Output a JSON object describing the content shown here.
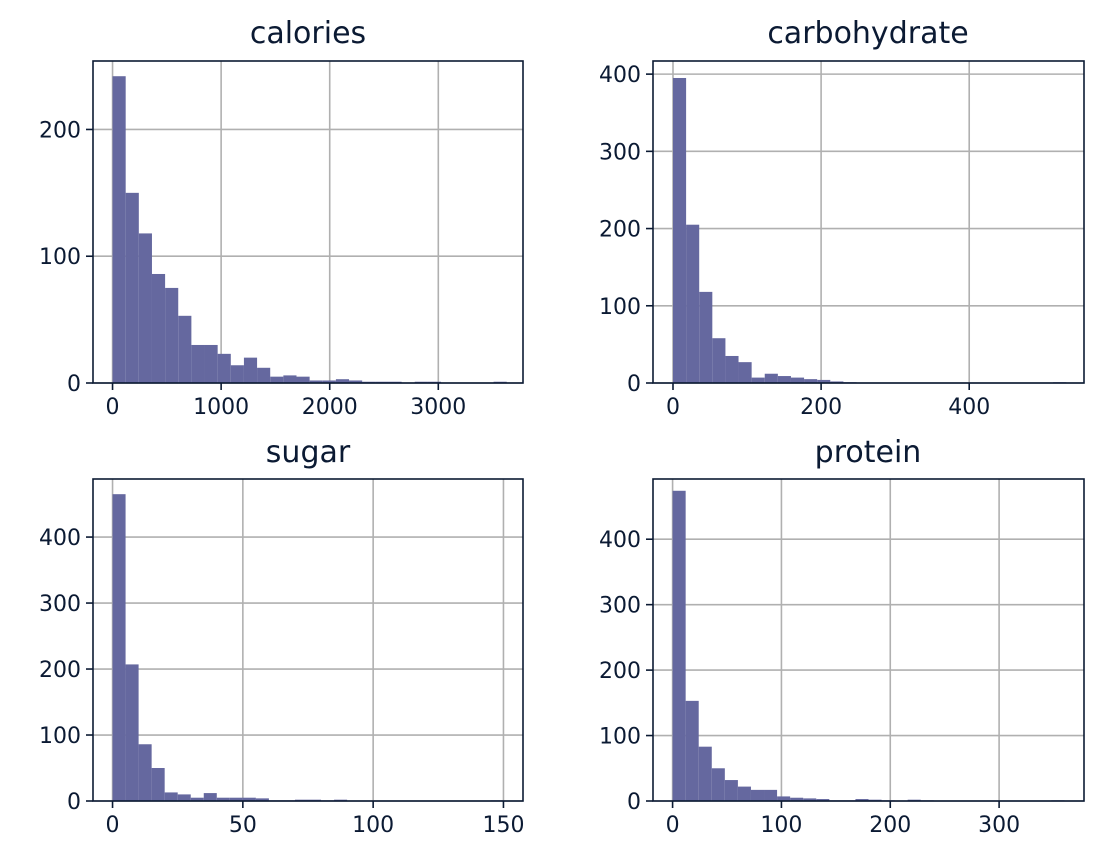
{
  "chart_data": [
    {
      "type": "bar",
      "title": "calories",
      "bar_color": "#65689f",
      "grid": true,
      "xlim": [
        -180,
        3780
      ],
      "ylim": [
        0,
        254
      ],
      "xticks": [
        0,
        1000,
        2000,
        3000
      ],
      "yticks": [
        0,
        100,
        200
      ],
      "bins": {
        "edges": [
          0,
          121,
          242,
          363,
          484,
          605,
          726,
          847,
          968,
          1089,
          1210,
          1331,
          1452,
          1573,
          1694,
          1815,
          1936,
          2057,
          2178,
          2299,
          2420,
          2541,
          2662,
          2783,
          2904,
          3025,
          3146,
          3267,
          3388,
          3509,
          3630
        ],
        "counts": [
          242,
          150,
          118,
          86,
          75,
          53,
          30,
          30,
          23,
          14,
          20,
          12,
          5,
          6,
          5,
          2,
          2,
          3,
          2,
          1,
          1,
          1,
          0,
          1,
          1,
          0,
          0,
          0,
          0,
          1
        ]
      }
    },
    {
      "type": "bar",
      "title": "carbohydrate",
      "bar_color": "#65689f",
      "grid": true,
      "xlim": [
        -27,
        555
      ],
      "ylim": [
        0,
        417
      ],
      "xticks": [
        0,
        200,
        400
      ],
      "yticks": [
        0,
        100,
        200,
        300,
        400
      ],
      "bins": {
        "edges": [
          0,
          17.7,
          35.4,
          53.1,
          70.8,
          88.5,
          106.2,
          123.9,
          141.6,
          159.3,
          177,
          194.7,
          212.4,
          230.1,
          247.8,
          265.5,
          283.2,
          300.9,
          318.6,
          336.3,
          354,
          371.7,
          389.4,
          407.1,
          424.8,
          442.5,
          460.2,
          477.9,
          495.6,
          513.3,
          531
        ],
        "counts": [
          395,
          205,
          118,
          58,
          35,
          27,
          7,
          12,
          9,
          7,
          5,
          4,
          2,
          1,
          0,
          0,
          0,
          0,
          0,
          0,
          0,
          0,
          0,
          0,
          0,
          0,
          0,
          0,
          0,
          1
        ]
      }
    },
    {
      "type": "bar",
      "title": "sugar",
      "bar_color": "#65689f",
      "grid": true,
      "xlim": [
        -7.5,
        157.5
      ],
      "ylim": [
        0,
        488
      ],
      "xticks": [
        0,
        50,
        100,
        150
      ],
      "yticks": [
        0,
        100,
        200,
        300,
        400
      ],
      "bins": {
        "edges": [
          0,
          5,
          10,
          15,
          20,
          25,
          30,
          35,
          40,
          45,
          50,
          55,
          60,
          65,
          70,
          75,
          80,
          85,
          90,
          95,
          100,
          105,
          110,
          115,
          120,
          125,
          130,
          135,
          140,
          145,
          150
        ],
        "counts": [
          465,
          207,
          86,
          50,
          13,
          10,
          5,
          12,
          5,
          5,
          5,
          4,
          1,
          1,
          2,
          2,
          1,
          2,
          0,
          0,
          0,
          0,
          0,
          0,
          0,
          0,
          0,
          0,
          0,
          1
        ]
      }
    },
    {
      "type": "bar",
      "title": "protein",
      "bar_color": "#65689f",
      "grid": true,
      "xlim": [
        -18,
        378
      ],
      "ylim": [
        0,
        492
      ],
      "xticks": [
        0,
        100,
        200,
        300
      ],
      "yticks": [
        0,
        100,
        200,
        300,
        400
      ],
      "bins": {
        "edges": [
          0,
          12,
          24,
          36,
          48,
          60,
          72,
          84,
          96,
          108,
          120,
          132,
          144,
          156,
          168,
          180,
          192,
          204,
          216,
          228,
          240,
          252,
          264,
          276,
          288,
          300,
          312,
          324,
          336,
          348,
          360
        ],
        "counts": [
          474,
          153,
          83,
          50,
          32,
          22,
          17,
          17,
          7,
          5,
          4,
          3,
          1,
          1,
          3,
          2,
          1,
          0,
          2,
          1,
          0,
          0,
          0,
          0,
          0,
          0,
          0,
          0,
          0,
          1
        ]
      }
    }
  ]
}
